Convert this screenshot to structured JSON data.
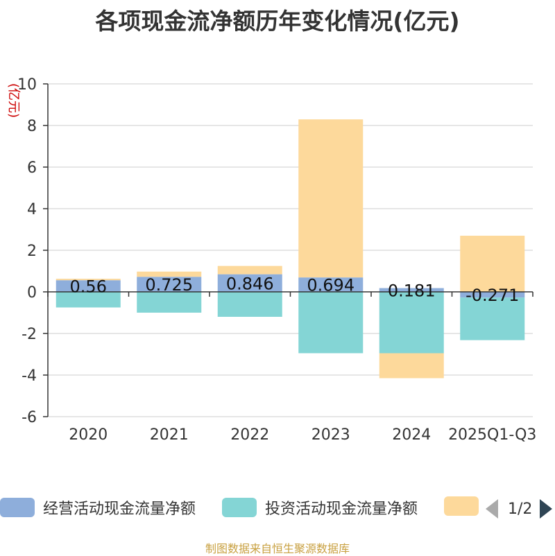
{
  "colors": {
    "operating": "#8eaedb",
    "investing": "#84d5d5",
    "financing": "#fdd99b",
    "axis_title": "#cc0000",
    "grid": "#cccccc",
    "axis": "#333333"
  },
  "legend": {
    "pager_text": "1/2"
  },
  "source_text": "制图数据来自恒生聚源数据库",
  "chart_data": {
    "type": "bar",
    "stacked": true,
    "title": "各项现金流净额历年变化情况(亿元)",
    "ylabel": "(亿元)",
    "xlabel": "",
    "ylim": [
      -6,
      10
    ],
    "yticks": [
      -6,
      -4,
      -2,
      0,
      2,
      4,
      6,
      8,
      10
    ],
    "ytick_labels": [
      "-6",
      "-4",
      "-2",
      "0",
      "2",
      "4",
      "6",
      "8",
      "10"
    ],
    "categories": [
      "2020",
      "2021",
      "2022",
      "2023",
      "2024",
      "2025Q1-Q3"
    ],
    "grid": true,
    "legend_position": "bottom",
    "series": [
      {
        "name": "经营活动现金流量净额",
        "color_key": "operating",
        "values": [
          0.56,
          0.725,
          0.846,
          0.694,
          0.181,
          -0.271
        ],
        "labels": [
          "0.56",
          "0.725",
          "0.846",
          "0.694",
          "0.181",
          "-0.271"
        ]
      },
      {
        "name": "投资活动现金流量净额",
        "color_key": "investing",
        "values": [
          -0.75,
          -1.0,
          -1.2,
          -2.95,
          -2.95,
          -2.05
        ]
      },
      {
        "name": "",
        "color_key": "financing",
        "values": [
          0.07,
          0.25,
          0.4,
          7.6,
          -1.2,
          2.7
        ]
      }
    ]
  }
}
